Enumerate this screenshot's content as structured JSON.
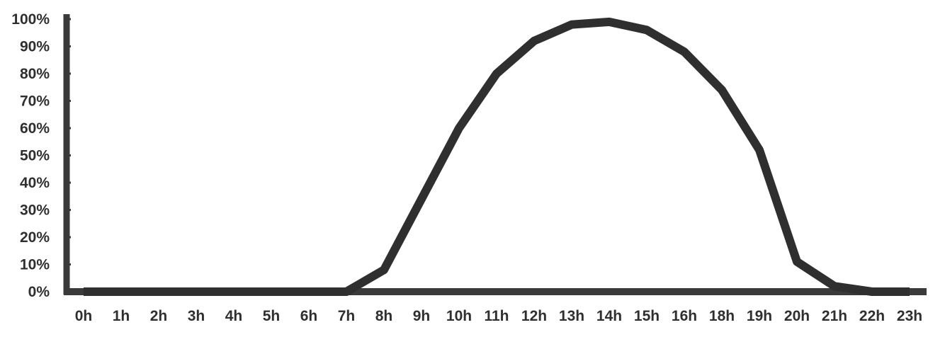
{
  "chart_data": {
    "type": "line",
    "categories": [
      "0h",
      "1h",
      "2h",
      "3h",
      "4h",
      "5h",
      "6h",
      "7h",
      "8h",
      "9h",
      "10h",
      "11h",
      "12h",
      "13h",
      "14h",
      "15h",
      "16h",
      "18h",
      "19h",
      "20h",
      "21h",
      "22h",
      "23h"
    ],
    "series": [
      {
        "values": [
          0,
          0,
          0,
          0,
          0,
          0,
          0,
          0,
          8,
          34,
          60,
          80,
          92,
          98,
          99,
          96,
          88,
          74,
          52,
          11,
          2,
          0,
          0
        ]
      }
    ],
    "ylim": [
      0,
      100
    ],
    "yticks": [
      "0%",
      "10%",
      "20%",
      "30%",
      "40%",
      "50%",
      "60%",
      "70%",
      "80%",
      "90%",
      "100%"
    ],
    "grid": false,
    "legend": "none",
    "colors": {
      "line": "#2f2f2f",
      "axis": "#3a3a3a",
      "text": "#2f2f2f"
    }
  }
}
